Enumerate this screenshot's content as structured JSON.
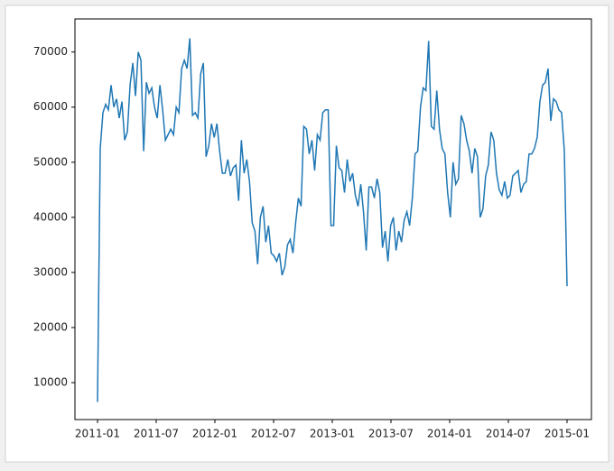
{
  "chart_data": {
    "type": "line",
    "series": [
      {
        "color": "#1f77b4",
        "values": [
          6500,
          52500,
          59000,
          60500,
          59500,
          64000,
          60000,
          61500,
          58000,
          61000,
          54000,
          55500,
          64000,
          68000,
          62000,
          70000,
          68500,
          52000,
          64500,
          62500,
          63500,
          60000,
          58000,
          64000,
          59500,
          54000,
          55000,
          56000,
          55000,
          60000,
          59000,
          67000,
          68500,
          67000,
          72500,
          58500,
          59000,
          58000,
          66000,
          68000,
          51000,
          53000,
          57000,
          54500,
          57000,
          52000,
          48000,
          48000,
          50500,
          47500,
          49000,
          49500,
          43000,
          54000,
          48000,
          50500,
          46500,
          39000,
          37500,
          31500,
          40000,
          42000,
          35500,
          38500,
          33500,
          33000,
          32000,
          33500,
          29500,
          31000,
          35000,
          36000,
          33500,
          39000,
          43500,
          42000,
          56500,
          56000,
          51500,
          54000,
          48500,
          55000,
          54000,
          59000,
          59500,
          59500,
          38500,
          38500,
          53000,
          49000,
          48500,
          44500,
          50500,
          46500,
          48000,
          44000,
          42000,
          46000,
          41000,
          34000,
          45500,
          45500,
          43500,
          47000,
          44500,
          34500,
          37500,
          32000,
          38500,
          40000,
          34000,
          37500,
          35500,
          39500,
          41000,
          38500,
          43500,
          51500,
          52000,
          60000,
          63500,
          63000,
          72000,
          56500,
          56000,
          63000,
          56000,
          52500,
          51500,
          44500,
          40000,
          50000,
          46000,
          47000,
          58500,
          57000,
          54000,
          52000,
          48000,
          52500,
          51000,
          40000,
          41500,
          47500,
          49500,
          55500,
          54000,
          48000,
          45000,
          44000,
          46500,
          43500,
          44000,
          47500,
          48000,
          48500,
          44500,
          46000,
          46500,
          51500,
          51500,
          52500,
          54500,
          61000,
          64000,
          64500,
          67000,
          57500,
          61500,
          61000,
          59500,
          59000,
          52000,
          27500
        ]
      }
    ],
    "xticks": [
      "2011-01",
      "2011-07",
      "2012-01",
      "2012-07",
      "2013-01",
      "2013-07",
      "2014-01",
      "2014-07",
      "2015-01"
    ],
    "ylim": [
      3300,
      76000
    ],
    "yticks": [
      10000,
      20000,
      30000,
      40000,
      50000,
      60000,
      70000
    ]
  }
}
